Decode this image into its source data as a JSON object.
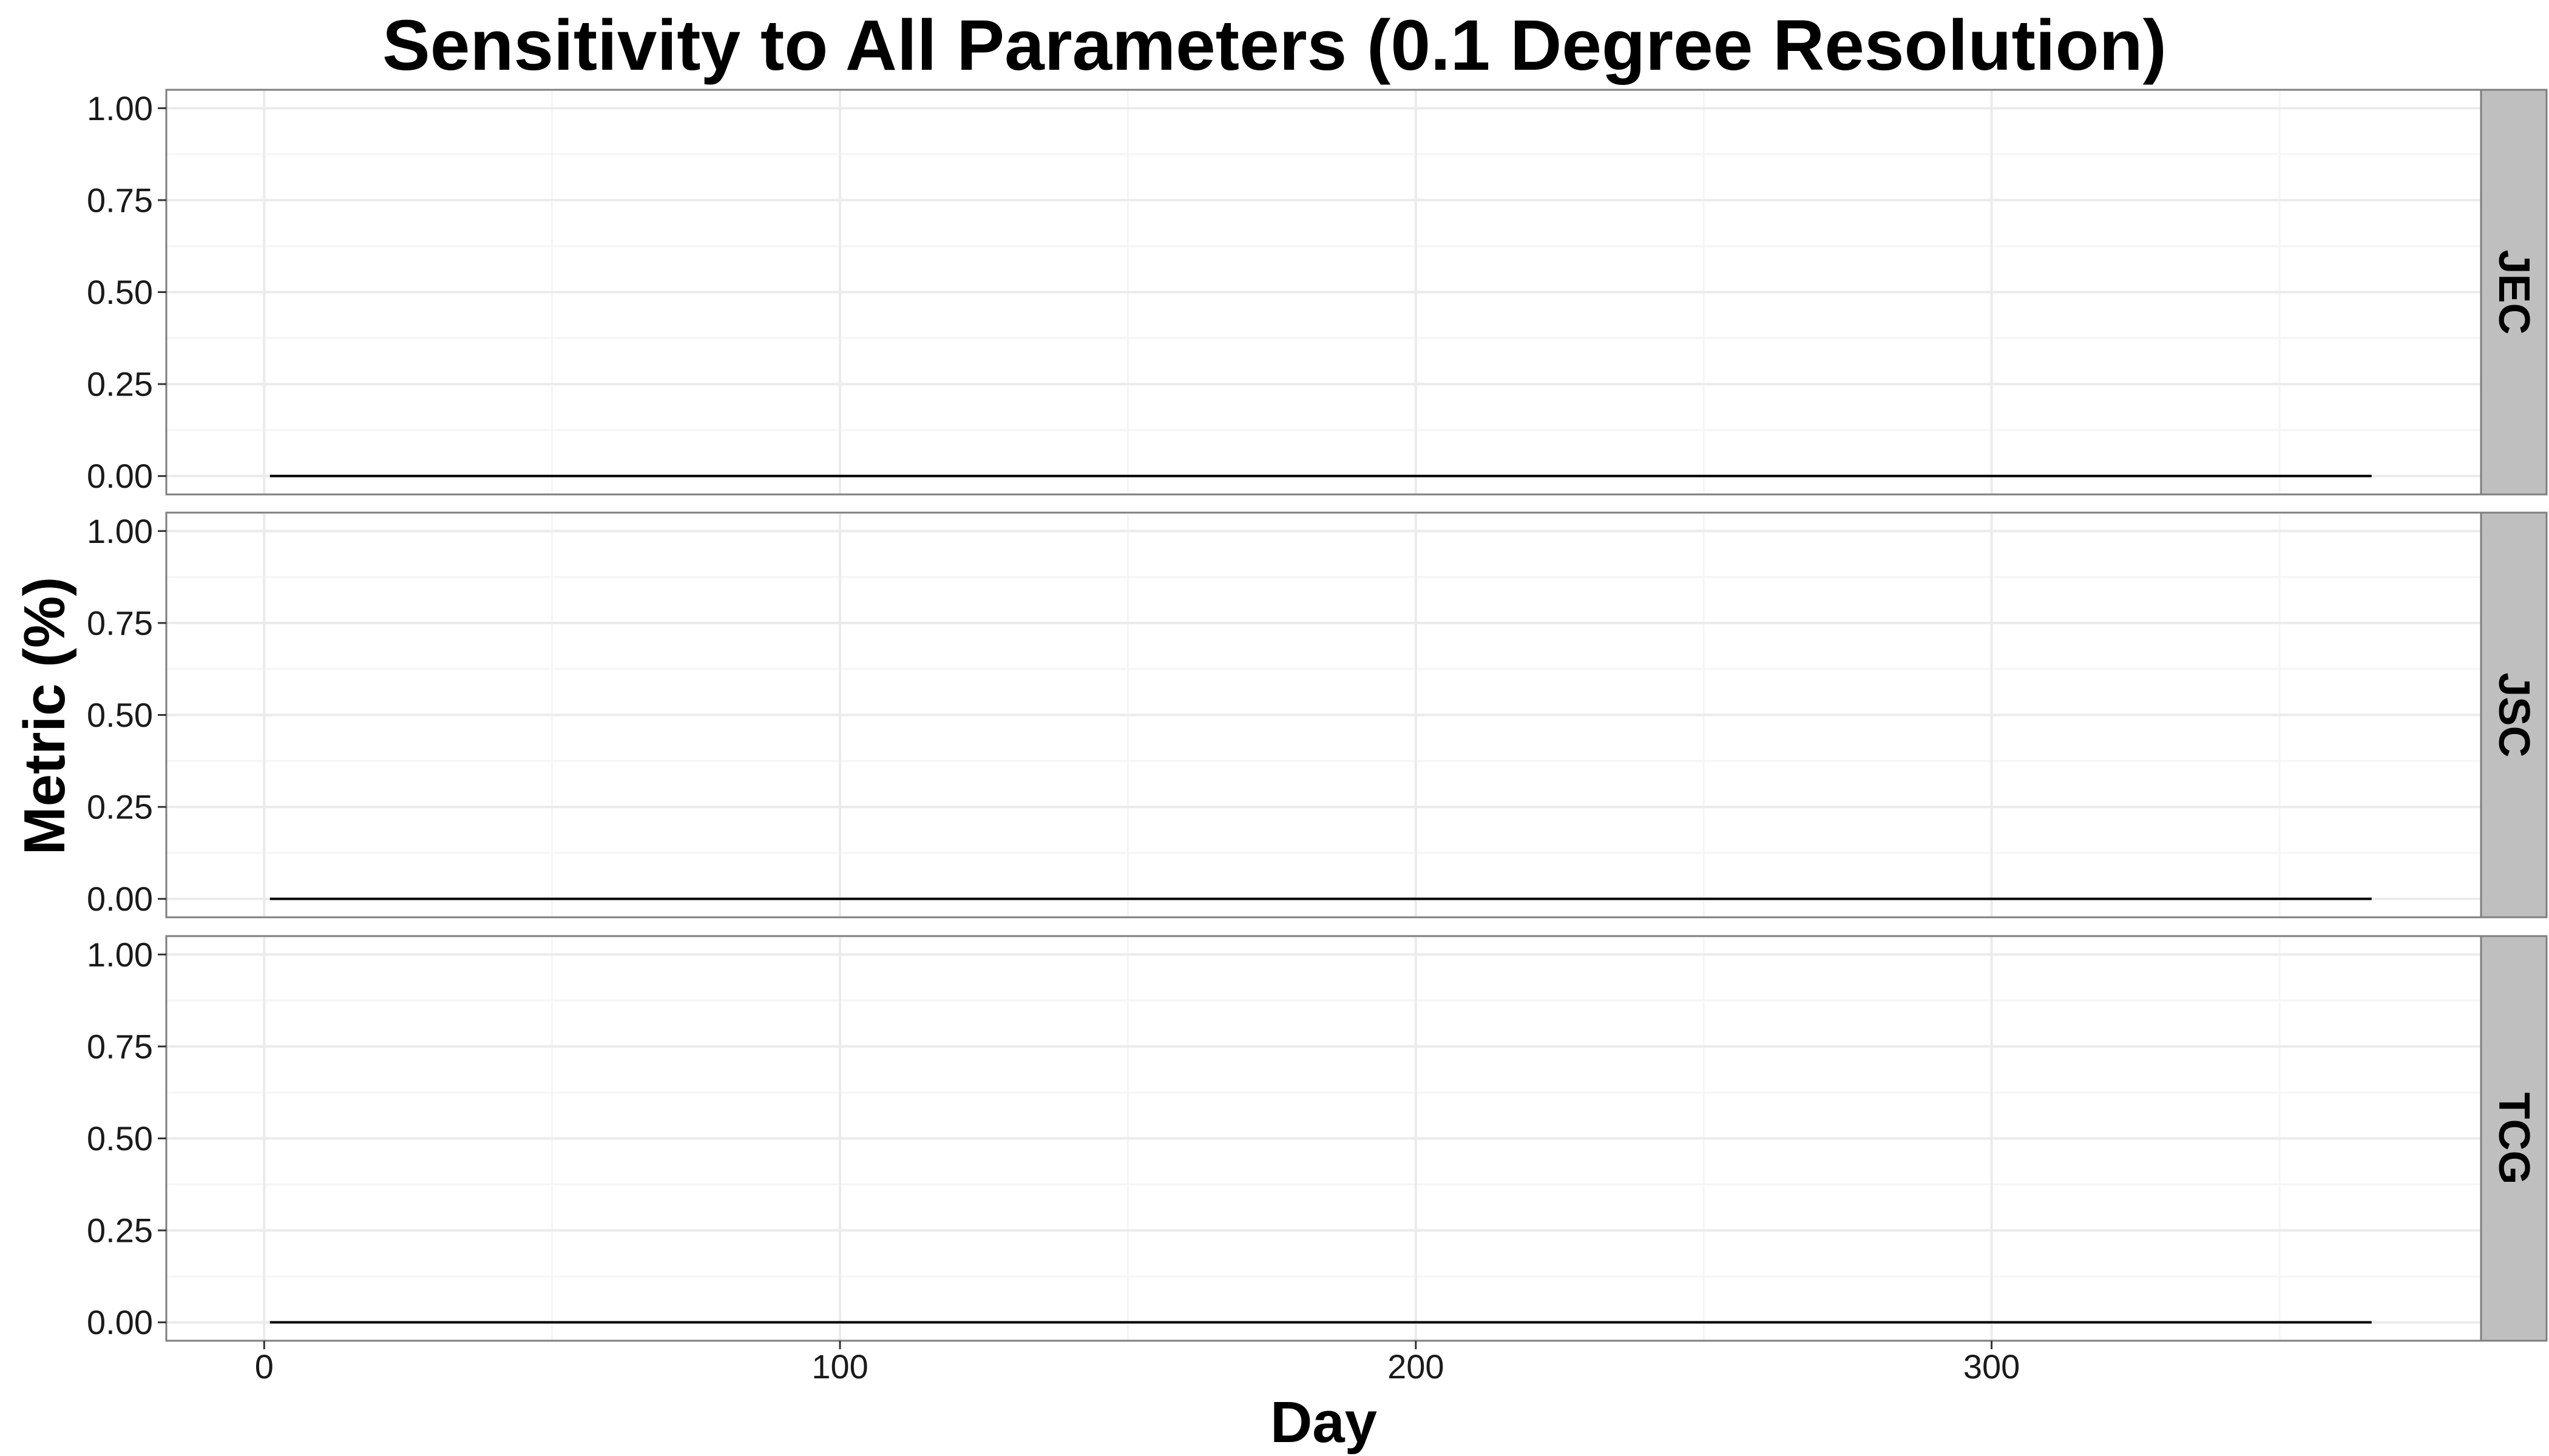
{
  "chart_data": {
    "type": "line",
    "title": "Sensitivity to All Parameters (0.1 Degree Resolution)",
    "xlabel": "Day",
    "ylabel": "Metric (%)",
    "xlim": [
      -17,
      385
    ],
    "ylim": [
      -0.05,
      1.05
    ],
    "x_ticks": [
      0,
      100,
      200,
      300
    ],
    "x_tick_labels": [
      "0",
      "100",
      "200",
      "300"
    ],
    "y_ticks": [
      0,
      0.25,
      0.5,
      0.75,
      1.0
    ],
    "y_tick_labels": [
      "0.00",
      "0.25",
      "0.50",
      "0.75",
      "1.00"
    ],
    "grid": true,
    "legend": "none",
    "facets": [
      {
        "label": "JEC",
        "x": [
          1,
          366
        ],
        "y": [
          0,
          0
        ]
      },
      {
        "label": "JSC",
        "x": [
          1,
          366
        ],
        "y": [
          0,
          0
        ]
      },
      {
        "label": "TCG",
        "x": [
          1,
          366
        ],
        "y": [
          0,
          0
        ]
      }
    ]
  },
  "colors": {
    "line": "#000000",
    "panel_border": "#7f7f7f",
    "grid_major": "#ebebeb",
    "grid_minor": "#f5f5f5",
    "strip_fill": "#bfbfbf",
    "strip_border": "#7f7f7f"
  }
}
